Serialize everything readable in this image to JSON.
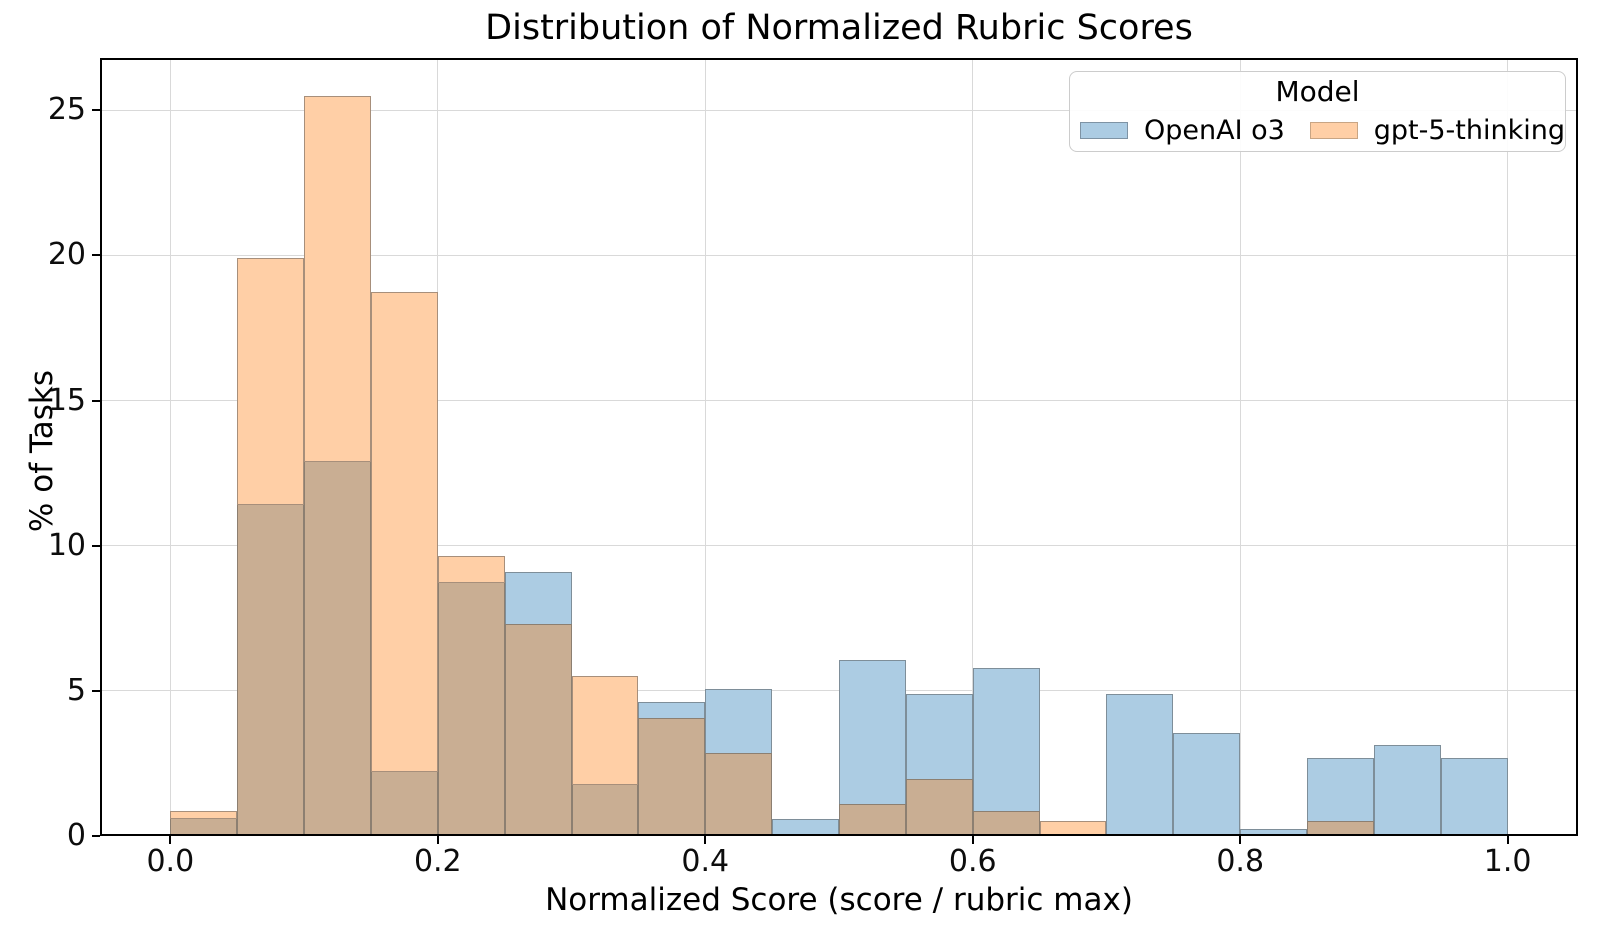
{
  "figure": {
    "title": "Distribution of Normalized Rubric Scores",
    "x_label": "Normalized Score (score / rubric max)",
    "y_label": "% of Tasks"
  },
  "legend": {
    "title": "Model",
    "entries": [
      {
        "label": "OpenAI o3",
        "color": "#accce3",
        "edge": "#7e93a4"
      },
      {
        "label": "gpt-5-thinking",
        "color": "#ffcfa6",
        "edge": "#c8a584"
      }
    ]
  },
  "chart_data": {
    "type": "bar",
    "subtype": "overlaid-histogram",
    "title": "Distribution of Normalized Rubric Scores",
    "xlabel": "Normalized Score (score / rubric max)",
    "ylabel": "% of Tasks",
    "bin_edges": [
      0.0,
      0.05,
      0.1,
      0.15,
      0.2,
      0.25,
      0.3,
      0.35,
      0.4,
      0.45,
      0.5,
      0.55,
      0.6,
      0.65,
      0.7,
      0.75,
      0.8,
      0.85,
      0.9,
      0.95,
      1.0
    ],
    "series": [
      {
        "name": "OpenAI o3",
        "values": [
          0.6,
          11.4,
          12.9,
          2.2,
          8.7,
          9.1,
          1.75,
          4.6,
          5.05,
          0.6,
          6.05,
          4.9,
          5.8,
          0,
          4.9,
          3.55,
          0.25,
          2.7,
          3.15,
          2.7
        ],
        "fill": "#accce3"
      },
      {
        "name": "gpt-5-thinking",
        "values": [
          0.85,
          19.9,
          25.5,
          18.75,
          9.65,
          7.3,
          5.5,
          4.05,
          2.85,
          0,
          1.1,
          1.95,
          0.85,
          0.5,
          0,
          0,
          0,
          0.5,
          0,
          0
        ],
        "fill": "#ffcfa6"
      }
    ],
    "overlap_fill": "#c9ae93",
    "xticks": [
      "0.0",
      "0.2",
      "0.4",
      "0.6",
      "0.8",
      "1.0"
    ],
    "xtick_values": [
      0.0,
      0.2,
      0.4,
      0.6,
      0.8,
      1.0
    ],
    "yticks": [
      "0",
      "5",
      "10",
      "15",
      "20",
      "25"
    ],
    "ytick_values": [
      0,
      5,
      10,
      15,
      20,
      25
    ],
    "xlim": [
      -0.0526,
      1.0526
    ],
    "ylim": [
      0,
      26.8
    ],
    "grid": true,
    "legend_title": "Model",
    "legend_position": "upper right"
  }
}
